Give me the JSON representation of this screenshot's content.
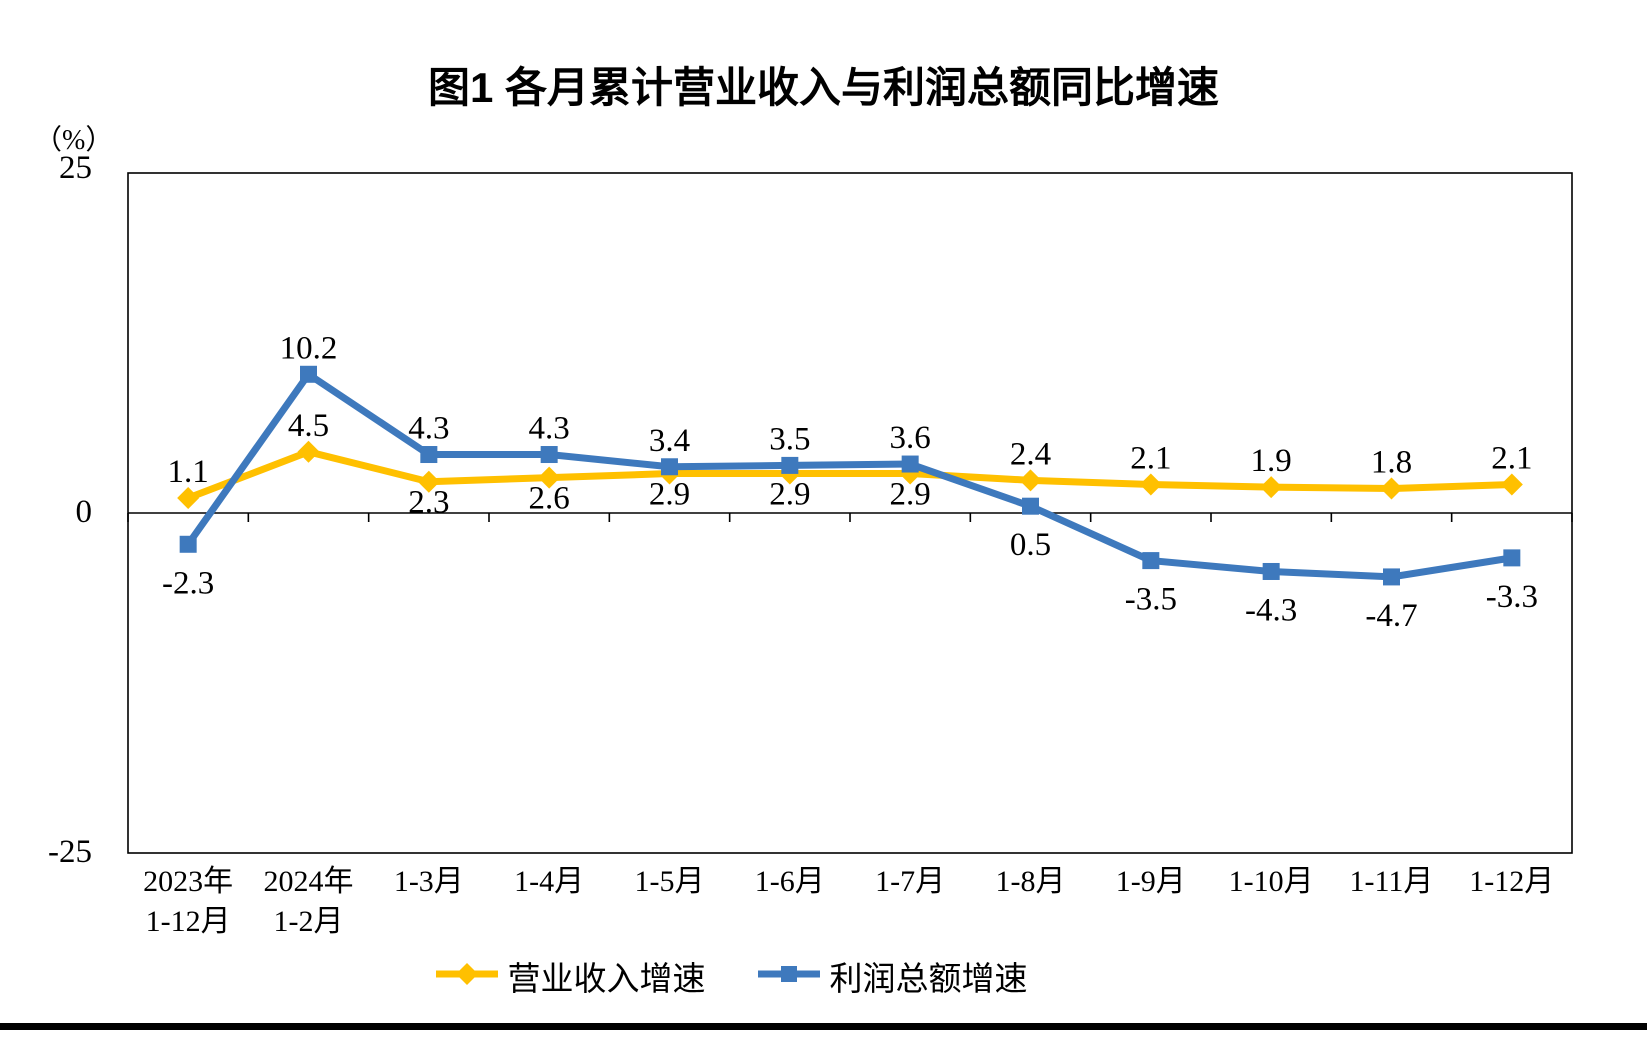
{
  "title": "图1  各月累计营业收入与利润总额同比增速",
  "y_axis": {
    "unit": "（%）",
    "max_label": "25",
    "zero_label": "0",
    "min_label": "-25"
  },
  "chart_data": {
    "type": "line",
    "title": "图1  各月累计营业收入与利润总额同比增速",
    "ylabel": "（%）",
    "ylim": [
      -25,
      25
    ],
    "y_tick_labels": [
      25,
      0,
      -25
    ],
    "grid": false,
    "legend_position": "bottom",
    "categories": [
      [
        "2023年",
        "1-12月"
      ],
      [
        "2024年",
        "1-2月"
      ],
      [
        "1-3月"
      ],
      [
        "1-4月"
      ],
      [
        "1-5月"
      ],
      [
        "1-6月"
      ],
      [
        "1-7月"
      ],
      [
        "1-8月"
      ],
      [
        "1-9月"
      ],
      [
        "1-10月"
      ],
      [
        "1-11月"
      ],
      [
        "1-12月"
      ]
    ],
    "series": [
      {
        "name": "营业收入增速",
        "color": "#FFC000",
        "marker": "diamond",
        "values": [
          1.1,
          4.5,
          2.3,
          2.6,
          2.9,
          2.9,
          2.9,
          2.4,
          2.1,
          1.9,
          1.8,
          2.1
        ],
        "label_side": [
          "above",
          "above",
          "below",
          "below",
          "below",
          "below",
          "below",
          "above",
          "above",
          "above",
          "above",
          "above"
        ]
      },
      {
        "name": "利润总额增速",
        "color": "#3E79BD",
        "marker": "square",
        "values": [
          -2.3,
          10.2,
          4.3,
          4.3,
          3.4,
          3.5,
          3.6,
          0.5,
          -3.5,
          -4.3,
          -4.7,
          -3.3
        ],
        "label_side": [
          "below",
          "above",
          "above",
          "above",
          "above",
          "above",
          "above",
          "below",
          "below",
          "below",
          "below",
          "below"
        ]
      }
    ]
  }
}
